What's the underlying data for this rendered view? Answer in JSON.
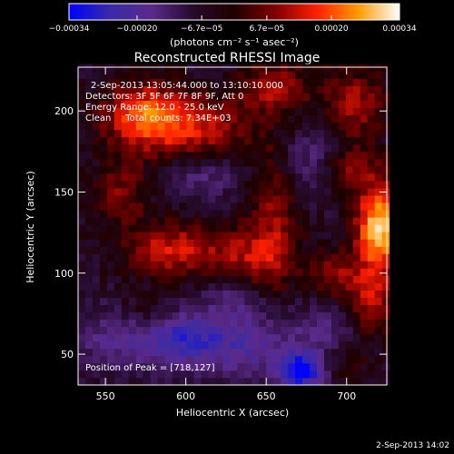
{
  "chart_data": {
    "type": "heatmap",
    "title": "Reconstructed RHESSI Image",
    "xlabel": "Heliocentric X (arcsec)",
    "ylabel": "Heliocentric Y (arcsec)",
    "xlim": [
      533,
      725
    ],
    "ylim": [
      31,
      227
    ],
    "x_ticks": [
      550,
      600,
      650,
      700
    ],
    "x_tick_labels": [
      "550",
      "600",
      "650",
      "700"
    ],
    "y_ticks": [
      50,
      100,
      150,
      200
    ],
    "y_tick_labels": [
      "50",
      "100",
      "150",
      "200"
    ],
    "grid": false,
    "colorbar": {
      "unit_label": "(photons cm⁻² s⁻¹ asec⁻²)",
      "range": [
        -0.00034,
        0.00034
      ],
      "tick_values": [
        -0.00034,
        -0.0002,
        -6.7e-05,
        6.7e-05,
        0.0002,
        0.00034
      ],
      "tick_labels": [
        "−0.00034",
        "−0.00020",
        "−6.7e−05",
        "6.7e−05",
        "0.00020",
        "0.00034"
      ],
      "colors": [
        "#0000ff",
        "#3a2aa8",
        "#5a2a8a",
        "#1a0505",
        "#800000",
        "#ff2000",
        "#ff8c00",
        "#ffd060",
        "#ffffff"
      ]
    },
    "annotations": [
      "2-Sep-2013 13:05:44.000 to 13:10:10.000",
      "Detectors: 3F 5F 6F 7F 8F 9F, Att 0",
      "Energy Range: 12.0 - 25.0 keV",
      "Clean     Total counts: 7.34E+03"
    ],
    "peak_label": "Position of Peak = [718,127]",
    "peak": {
      "x": 718,
      "y": 127
    },
    "sources": [
      {
        "x": 600,
        "y": 190,
        "sx": 28,
        "sy": 14,
        "amp": 0.0002
      },
      {
        "x": 572,
        "y": 200,
        "sx": 16,
        "sy": 14,
        "amp": 0.00018
      },
      {
        "x": 655,
        "y": 215,
        "sx": 16,
        "sy": 10,
        "amp": 0.00016
      },
      {
        "x": 705,
        "y": 205,
        "sx": 14,
        "sy": 16,
        "amp": 0.00015
      },
      {
        "x": 560,
        "y": 150,
        "sx": 12,
        "sy": 14,
        "amp": 0.00012
      },
      {
        "x": 590,
        "y": 115,
        "sx": 20,
        "sy": 12,
        "amp": 0.00018
      },
      {
        "x": 640,
        "y": 110,
        "sx": 20,
        "sy": 14,
        "amp": 0.00015
      },
      {
        "x": 655,
        "y": 140,
        "sx": 10,
        "sy": 30,
        "amp": 0.00012
      },
      {
        "x": 720,
        "y": 130,
        "sx": 10,
        "sy": 18,
        "amp": 0.00034
      },
      {
        "x": 700,
        "y": 165,
        "sx": 14,
        "sy": 10,
        "amp": 0.00014
      },
      {
        "x": 715,
        "y": 85,
        "sx": 12,
        "sy": 18,
        "amp": 0.00017
      },
      {
        "x": 690,
        "y": 100,
        "sx": 10,
        "sy": 10,
        "amp": 0.00012
      },
      {
        "x": 575,
        "y": 75,
        "sx": 12,
        "sy": 8,
        "amp": 8e-05
      },
      {
        "x": 700,
        "y": 45,
        "sx": 12,
        "sy": 8,
        "amp": 6e-05
      },
      {
        "x": 610,
        "y": 160,
        "sx": 16,
        "sy": 10,
        "amp": -0.0001
      },
      {
        "x": 560,
        "y": 60,
        "sx": 22,
        "sy": 14,
        "amp": -0.00012
      },
      {
        "x": 600,
        "y": 60,
        "sx": 18,
        "sy": 12,
        "amp": -0.00018
      },
      {
        "x": 640,
        "y": 55,
        "sx": 20,
        "sy": 14,
        "amp": -0.00014
      },
      {
        "x": 672,
        "y": 40,
        "sx": 10,
        "sy": 8,
        "amp": -0.0003
      },
      {
        "x": 680,
        "y": 170,
        "sx": 14,
        "sy": 14,
        "amp": -0.00012
      },
      {
        "x": 690,
        "y": 65,
        "sx": 16,
        "sy": 12,
        "amp": -0.0001
      },
      {
        "x": 630,
        "y": 85,
        "sx": 14,
        "sy": 10,
        "amp": -0.0001
      }
    ]
  },
  "footer_timestamp": "2-Sep-2013 14:02"
}
